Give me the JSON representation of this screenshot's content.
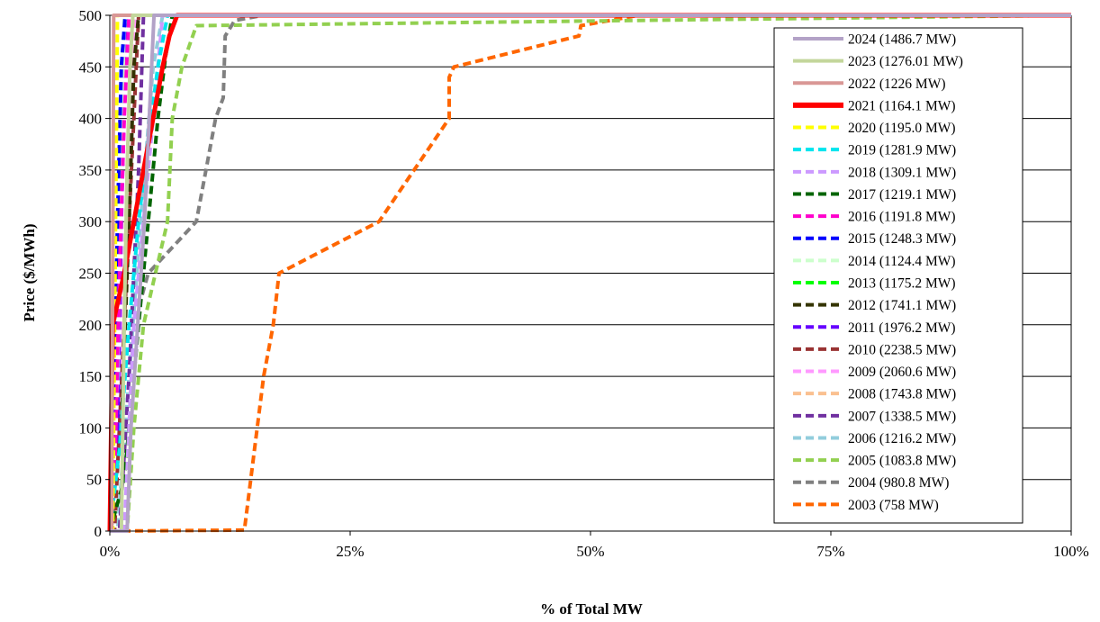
{
  "chart_data": {
    "type": "line",
    "xlabel": "% of Total MW",
    "ylabel": "Price ($/MWh)",
    "xlim": [
      0,
      100
    ],
    "ylim": [
      0,
      500
    ],
    "x_ticks": [
      "0%",
      "25%",
      "50%",
      "75%",
      "100%"
    ],
    "y_ticks": [
      "0",
      "50",
      "100",
      "150",
      "200",
      "250",
      "300",
      "350",
      "400",
      "450",
      "500"
    ],
    "grid": "horizontal",
    "legend_position": "right",
    "series": [
      {
        "name": "2024 (1486.7 MW)",
        "color": "#b3a2c7",
        "dash": "solid",
        "x": [
          0,
          1.8,
          2.2,
          2.9,
          3.6,
          4.1,
          4.6,
          100
        ],
        "y": [
          0,
          0,
          100,
          200,
          300,
          400,
          500,
          500
        ]
      },
      {
        "name": "2023 (1276.01 MW)",
        "color": "#c3d69b",
        "dash": "solid",
        "x": [
          0,
          1.2,
          1.5,
          1.8,
          2.1,
          2.4,
          100
        ],
        "y": [
          0,
          0,
          200,
          350,
          450,
          500,
          500
        ]
      },
      {
        "name": "2022 (1226 MW)",
        "color": "#d99795",
        "dash": "solid",
        "x": [
          0,
          0.2,
          0.3,
          0.4,
          100
        ],
        "y": [
          0,
          0,
          250,
          500,
          500
        ]
      },
      {
        "name": "2021 (1164.1 MW)",
        "color": "#ff0000",
        "dash": "solid",
        "x": [
          0,
          0.3,
          1.5,
          2.5,
          3.5,
          4.5,
          5.5,
          6.2,
          7.0,
          100
        ],
        "y": [
          0,
          200,
          250,
          300,
          350,
          400,
          450,
          480,
          500,
          500
        ]
      },
      {
        "name": "2020 (1195.0 MW)",
        "color": "#ffff00",
        "dash": "dashed",
        "x": [
          0,
          0.3,
          0.5,
          0.7,
          0.8,
          100
        ],
        "y": [
          0,
          0,
          200,
          400,
          500,
          500
        ]
      },
      {
        "name": "2019 (1281.9 MW)",
        "color": "#00e5ee",
        "dash": "dashed",
        "x": [
          0,
          1.0,
          2.0,
          3.0,
          4.0,
          5.0,
          6.0,
          100
        ],
        "y": [
          0,
          80,
          200,
          300,
          380,
          450,
          500,
          500
        ]
      },
      {
        "name": "2018 (1309.1 MW)",
        "color": "#cc99ff",
        "dash": "dashed",
        "x": [
          0,
          1.5,
          2.5,
          3.5,
          4.5,
          5.5,
          100
        ],
        "y": [
          0,
          0,
          200,
          300,
          400,
          500,
          500
        ]
      },
      {
        "name": "2017 (1219.1 MW)",
        "color": "#006400",
        "dash": "dashed",
        "x": [
          0,
          1.5,
          3.0,
          4.0,
          5.0,
          5.8,
          6.5,
          100
        ],
        "y": [
          0,
          50,
          200,
          300,
          400,
          460,
          500,
          500
        ]
      },
      {
        "name": "2016 (1191.8 MW)",
        "color": "#ff00cc",
        "dash": "dashed",
        "x": [
          0,
          0.5,
          1.0,
          1.5,
          2.0,
          100
        ],
        "y": [
          0,
          50,
          250,
          400,
          500,
          500
        ]
      },
      {
        "name": "2015 (1248.3 MW)",
        "color": "#0000ff",
        "dash": "dashed",
        "x": [
          0,
          0.4,
          0.8,
          1.2,
          1.6,
          100
        ],
        "y": [
          0,
          100,
          300,
          450,
          500,
          500
        ]
      },
      {
        "name": "2014 (1124.4 MW)",
        "color": "#ccffcc",
        "dash": "dashed",
        "x": [
          0,
          0.8,
          1.2,
          1.5,
          100
        ],
        "y": [
          0,
          150,
          350,
          500,
          500
        ]
      },
      {
        "name": "2013 (1175.2 MW)",
        "color": "#00ff00",
        "dash": "dashed",
        "x": [
          0,
          0.5,
          0.8,
          1.2,
          1.6,
          100
        ],
        "y": [
          0,
          60,
          250,
          450,
          500,
          500
        ]
      },
      {
        "name": "2012 (1741.1 MW)",
        "color": "#333300",
        "dash": "dashed",
        "x": [
          0,
          1.2,
          2.0,
          2.5,
          3.0,
          100
        ],
        "y": [
          0,
          100,
          300,
          450,
          500,
          500
        ]
      },
      {
        "name": "2011 (1976.2 MW)",
        "color": "#6600ff",
        "dash": "dashed",
        "x": [
          0,
          0.8,
          1.2,
          1.6,
          2.0,
          100
        ],
        "y": [
          0,
          100,
          300,
          450,
          500,
          500
        ]
      },
      {
        "name": "2010 (2238.5 MW)",
        "color": "#993333",
        "dash": "dashed",
        "x": [
          0,
          0.5,
          1.5,
          2.5,
          3.0,
          100
        ],
        "y": [
          0,
          0,
          200,
          400,
          500,
          500
        ]
      },
      {
        "name": "2009 (2060.6 MW)",
        "color": "#ff99ff",
        "dash": "dashed",
        "x": [
          0,
          0.8,
          1.5,
          2.2,
          2.8,
          100
        ],
        "y": [
          0,
          100,
          250,
          400,
          500,
          500
        ]
      },
      {
        "name": "2008 (1743.8 MW)",
        "color": "#fac090",
        "dash": "dashed",
        "x": [
          0,
          0.8,
          1.5,
          2.0,
          2.5,
          100
        ],
        "y": [
          0,
          100,
          250,
          400,
          500,
          500
        ]
      },
      {
        "name": "2007 (1338.5 MW)",
        "color": "#7030a0",
        "dash": "dashed",
        "x": [
          0,
          1.0,
          2.0,
          3.0,
          3.5,
          100
        ],
        "y": [
          0,
          0,
          150,
          350,
          500,
          500
        ]
      },
      {
        "name": "2006 (1216.2 MW)",
        "color": "#92cddc",
        "dash": "dashed",
        "x": [
          0,
          0.8,
          2.0,
          3.2,
          4.5,
          5.5,
          100
        ],
        "y": [
          0,
          0,
          150,
          300,
          450,
          500,
          500
        ]
      },
      {
        "name": "2005 (1083.8 MW)",
        "color": "#92d050",
        "dash": "dashed",
        "x": [
          0,
          1.8,
          2.5,
          3.5,
          5.0,
          6.0,
          6.5,
          7.5,
          9.0,
          100
        ],
        "y": [
          0,
          0,
          100,
          200,
          260,
          300,
          400,
          450,
          490,
          500
        ]
      },
      {
        "name": "2004 (980.8 MW)",
        "color": "#808080",
        "dash": "dashed",
        "x": [
          0,
          1.5,
          1.8,
          2.0,
          2.5,
          4.0,
          6.0,
          9.0,
          10.0,
          11.0,
          11.8,
          12.0,
          13.0,
          16.0,
          100
        ],
        "y": [
          0,
          0,
          50,
          100,
          200,
          250,
          270,
          300,
          350,
          400,
          420,
          480,
          495,
          500,
          500
        ]
      },
      {
        "name": "2003 (758 MW)",
        "color": "#ff6600",
        "dash": "dashed",
        "x": [
          0,
          14.0,
          16.0,
          17.0,
          17.6,
          28.0,
          35.3,
          35.3,
          35.8,
          48.8,
          49.0,
          55.0,
          100
        ],
        "y": [
          0,
          1,
          150,
          200,
          250,
          300,
          400,
          440,
          450,
          480,
          490,
          500,
          500
        ]
      }
    ]
  }
}
